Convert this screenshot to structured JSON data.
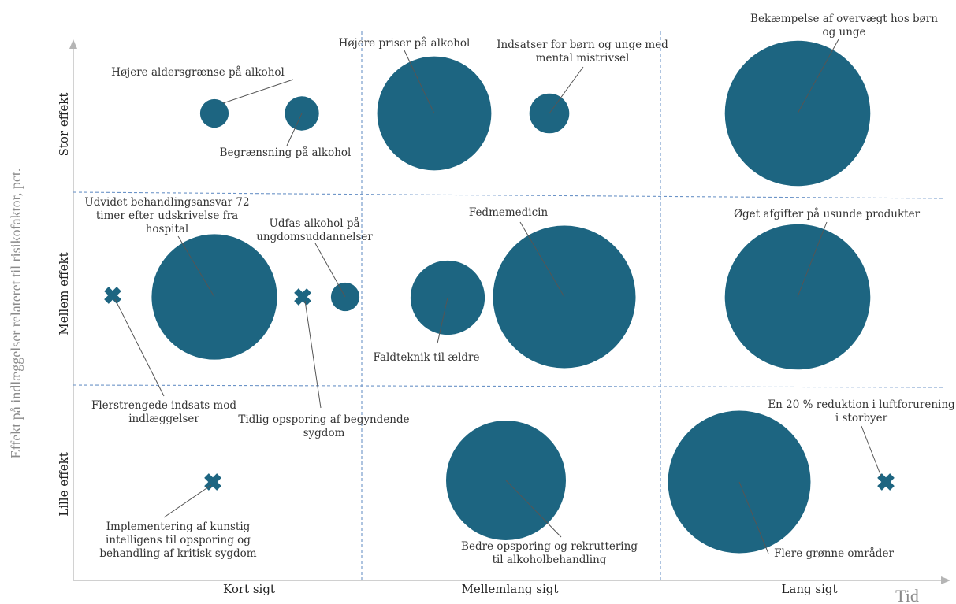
{
  "chart_data": {
    "type": "scatter",
    "xlabel": "Tid",
    "ylabel": "Effekt på indlæggelser relateret til risikofaktor, pct.",
    "x_categories": [
      "Kort sigt",
      "Mellemlang sigt",
      "Lang sigt"
    ],
    "y_categories": [
      "Stor effekt",
      "Mellem effekt",
      "Lille effekt"
    ],
    "colors": {
      "marker": "#1d6581",
      "grid": "#6b93c7",
      "axis": "#b5b5b5"
    },
    "items": [
      {
        "label": "Højere aldersgrænse på alkohol",
        "x_category": "Kort sigt",
        "y_category": "Stor effekt",
        "marker": "circle",
        "size": 1
      },
      {
        "label": "Begrænsning på alkohol",
        "x_category": "Kort sigt",
        "y_category": "Stor effekt",
        "marker": "circle",
        "size": 1.2
      },
      {
        "label": "Højere priser på alkohol",
        "x_category": "Mellemlang sigt",
        "y_category": "Stor effekt",
        "marker": "circle",
        "size": 4
      },
      {
        "label": "Indsatser for børn og unge med mental mistrivsel",
        "x_category": "Mellemlang sigt",
        "y_category": "Stor effekt",
        "marker": "circle",
        "size": 1.4
      },
      {
        "label": "Bekæmpelse af overvægt hos børn og unge",
        "x_category": "Lang sigt",
        "y_category": "Stor effekt",
        "marker": "circle",
        "size": 5.1
      },
      {
        "label": "Udvidet behandlingsansvar 72 timer efter udskrivelse fra hospital",
        "x_category": "Kort sigt",
        "y_category": "Mellem effekt",
        "marker": "circle",
        "size": 4.4
      },
      {
        "label": "Flerstrengede indsats mod indlæggelser",
        "x_category": "Kort sigt",
        "y_category": "Mellem effekt",
        "marker": "cross"
      },
      {
        "label": "Tidlig opsporing af begyndende sygdom",
        "x_category": "Kort sigt",
        "y_category": "Mellem effekt",
        "marker": "cross"
      },
      {
        "label": "Udfas alkohol på ungdomsuddannelser",
        "x_category": "Kort sigt",
        "y_category": "Mellem effekt",
        "marker": "circle",
        "size": 1
      },
      {
        "label": "Faldteknik til ældre",
        "x_category": "Mellemlang sigt",
        "y_category": "Mellem effekt",
        "marker": "circle",
        "size": 2.6
      },
      {
        "label": "Fedmemedicin",
        "x_category": "Mellemlang sigt",
        "y_category": "Mellem effekt",
        "marker": "circle",
        "size": 5
      },
      {
        "label": "Øget afgifter på usunde produkter",
        "x_category": "Lang sigt",
        "y_category": "Mellem effekt",
        "marker": "circle",
        "size": 5.1
      },
      {
        "label": "Implementering af kunstig intelligens til opsporing og behandling af kritisk sygdom",
        "x_category": "Kort sigt",
        "y_category": "Lille effekt",
        "marker": "cross"
      },
      {
        "label": "Bedre opsporing og rekruttering til alkoholbehandling",
        "x_category": "Mellemlang sigt",
        "y_category": "Lille effekt",
        "marker": "circle",
        "size": 4.2
      },
      {
        "label": "Flere grønne områder",
        "x_category": "Lang sigt",
        "y_category": "Lille effekt",
        "marker": "circle",
        "size": 5
      },
      {
        "label": "En 20 % reduktion i luftforurening i storbyer",
        "x_category": "Lang sigt",
        "y_category": "Lille effekt",
        "marker": "cross"
      }
    ]
  }
}
